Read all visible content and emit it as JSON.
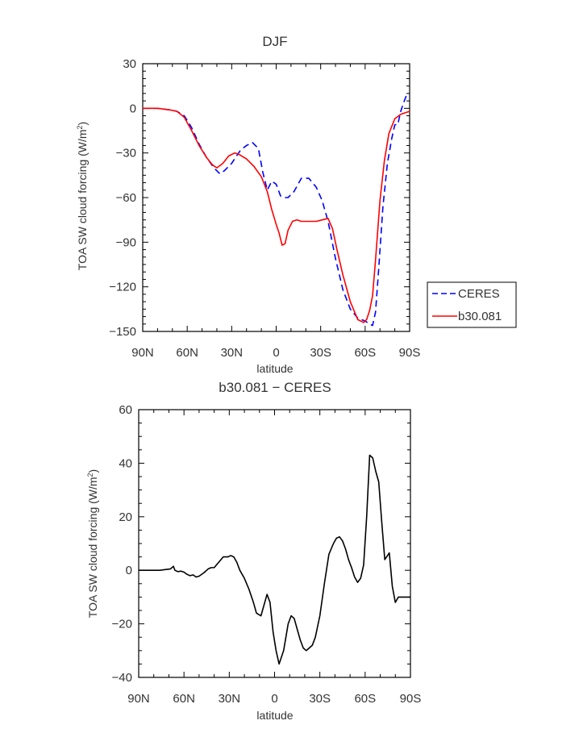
{
  "chart_data": [
    {
      "type": "line",
      "title": "DJF",
      "xlabel": "latitude",
      "ylabel_prefix": "TOA SW cloud forcing (W/m",
      "ylabel_sup": "2",
      "ylabel_suffix": ")",
      "x_ticks": [
        -90,
        -60,
        -30,
        0,
        30,
        60,
        90
      ],
      "x_tick_labels": [
        "90N",
        "60N",
        "30N",
        "0",
        "30S",
        "60S",
        "90S"
      ],
      "xlim": [
        -90,
        90
      ],
      "ylim": [
        -150,
        30
      ],
      "y_ticks": [
        30,
        0,
        -30,
        -60,
        -90,
        -120,
        -150
      ],
      "y_tick_labels": [
        "30",
        "0",
        "−30",
        "−60",
        "−90",
        "−120",
        "−150"
      ],
      "legend": "right",
      "series": [
        {
          "name": "CERES",
          "color": "#0000ff",
          "dash": "dashed",
          "x": [
            -90,
            -80,
            -72,
            -67,
            -62,
            -57,
            -52,
            -47,
            -42,
            -38,
            -35,
            -30,
            -24,
            -20,
            -16,
            -12,
            -9,
            -6,
            -3,
            0,
            3,
            6,
            8,
            12,
            17,
            22,
            27,
            31,
            35,
            40,
            45,
            50,
            55,
            60,
            63,
            65,
            67,
            69,
            72,
            75,
            78,
            80,
            82,
            84,
            86,
            88,
            90
          ],
          "values": [
            0,
            0,
            -1,
            -2,
            -5,
            -13,
            -24,
            -33,
            -40,
            -44,
            -42,
            -37,
            -28,
            -25,
            -23,
            -27,
            -43,
            -55,
            -49,
            -51,
            -59,
            -60,
            -60,
            -56,
            -47,
            -47,
            -53,
            -62,
            -76,
            -101,
            -122,
            -135,
            -141,
            -143,
            -145,
            -146,
            -137,
            -110,
            -66,
            -37,
            -20,
            -11,
            -11,
            -2,
            4,
            9,
            8
          ]
        },
        {
          "name": "b30.081",
          "color": "#ff0000",
          "dash": "solid",
          "x": [
            -90,
            -80,
            -72,
            -67,
            -62,
            -57,
            -52,
            -47,
            -43,
            -40,
            -36,
            -32,
            -28,
            -25,
            -20,
            -15,
            -10,
            -6,
            -3,
            0,
            2,
            4,
            6,
            8,
            11,
            14,
            17,
            22,
            27,
            31,
            35,
            38,
            41,
            45,
            50,
            55,
            59,
            61,
            63,
            65,
            67,
            70,
            73,
            76,
            80,
            84,
            87,
            90
          ],
          "values": [
            0,
            0,
            -1,
            -2,
            -6,
            -15,
            -25,
            -33,
            -38,
            -40,
            -37,
            -32,
            -30,
            -31,
            -34,
            -39,
            -46,
            -56,
            -68,
            -78,
            -84,
            -92,
            -91,
            -82,
            -76,
            -75,
            -76,
            -76,
            -76,
            -75,
            -74,
            -81,
            -95,
            -112,
            -130,
            -142,
            -144,
            -142,
            -136,
            -126,
            -102,
            -62,
            -35,
            -17,
            -7,
            -4,
            -3,
            -2
          ]
        }
      ]
    },
    {
      "type": "line",
      "title": "b30.081 − CERES",
      "xlabel": "latitude",
      "ylabel_prefix": "TOA SW cloud forcing (W/m",
      "ylabel_sup": "2",
      "ylabel_suffix": ")",
      "x_ticks": [
        -90,
        -60,
        -30,
        0,
        30,
        60,
        90
      ],
      "x_tick_labels": [
        "90N",
        "60N",
        "30N",
        "0",
        "30S",
        "60S",
        "90S"
      ],
      "xlim": [
        -90,
        90
      ],
      "ylim": [
        -40,
        60
      ],
      "y_ticks": [
        60,
        40,
        20,
        0,
        -20,
        -40
      ],
      "y_tick_labels": [
        "60",
        "40",
        "20",
        "0",
        "−20",
        "−40"
      ],
      "series": [
        {
          "color": "#000000",
          "dash": "solid",
          "x": [
            -90,
            -85,
            -80,
            -76,
            -72,
            -69,
            -67,
            -66,
            -64,
            -62,
            -60,
            -58,
            -56,
            -54,
            -52,
            -50,
            -47,
            -44,
            -42,
            -40,
            -37,
            -34,
            -31,
            -29,
            -27,
            -25,
            -23,
            -20,
            -17,
            -14,
            -12,
            -9,
            -7,
            -5,
            -3,
            -1,
            1,
            3,
            6,
            9,
            11,
            13,
            15,
            17,
            19,
            21,
            23,
            25,
            27,
            30,
            33,
            36,
            39,
            41,
            43,
            45,
            47,
            49,
            51,
            53,
            55,
            57,
            59,
            61,
            63,
            65,
            67,
            69,
            71,
            73,
            76,
            78,
            80,
            82,
            84,
            87,
            90
          ],
          "values": [
            0,
            0,
            0,
            0,
            0.3,
            0.5,
            1.5,
            0,
            -0.5,
            -0.3,
            -0.7,
            -1.5,
            -2,
            -1.7,
            -2.5,
            -2.2,
            -1,
            0.5,
            1,
            1,
            3,
            5,
            5,
            5.5,
            5,
            3,
            0,
            -3,
            -7,
            -12,
            -16,
            -17,
            -13,
            -9,
            -12,
            -23,
            -30,
            -35,
            -30,
            -20,
            -17,
            -18,
            -22,
            -26,
            -29,
            -30,
            -29,
            -28,
            -25,
            -17,
            -5,
            6,
            10,
            12,
            12.5,
            11,
            8,
            4,
            1,
            -2.5,
            -4.5,
            -3,
            2,
            20,
            43,
            42,
            37,
            33,
            18,
            4,
            6.5,
            -6,
            -12,
            -10,
            -10,
            -10,
            -10
          ]
        }
      ]
    }
  ]
}
